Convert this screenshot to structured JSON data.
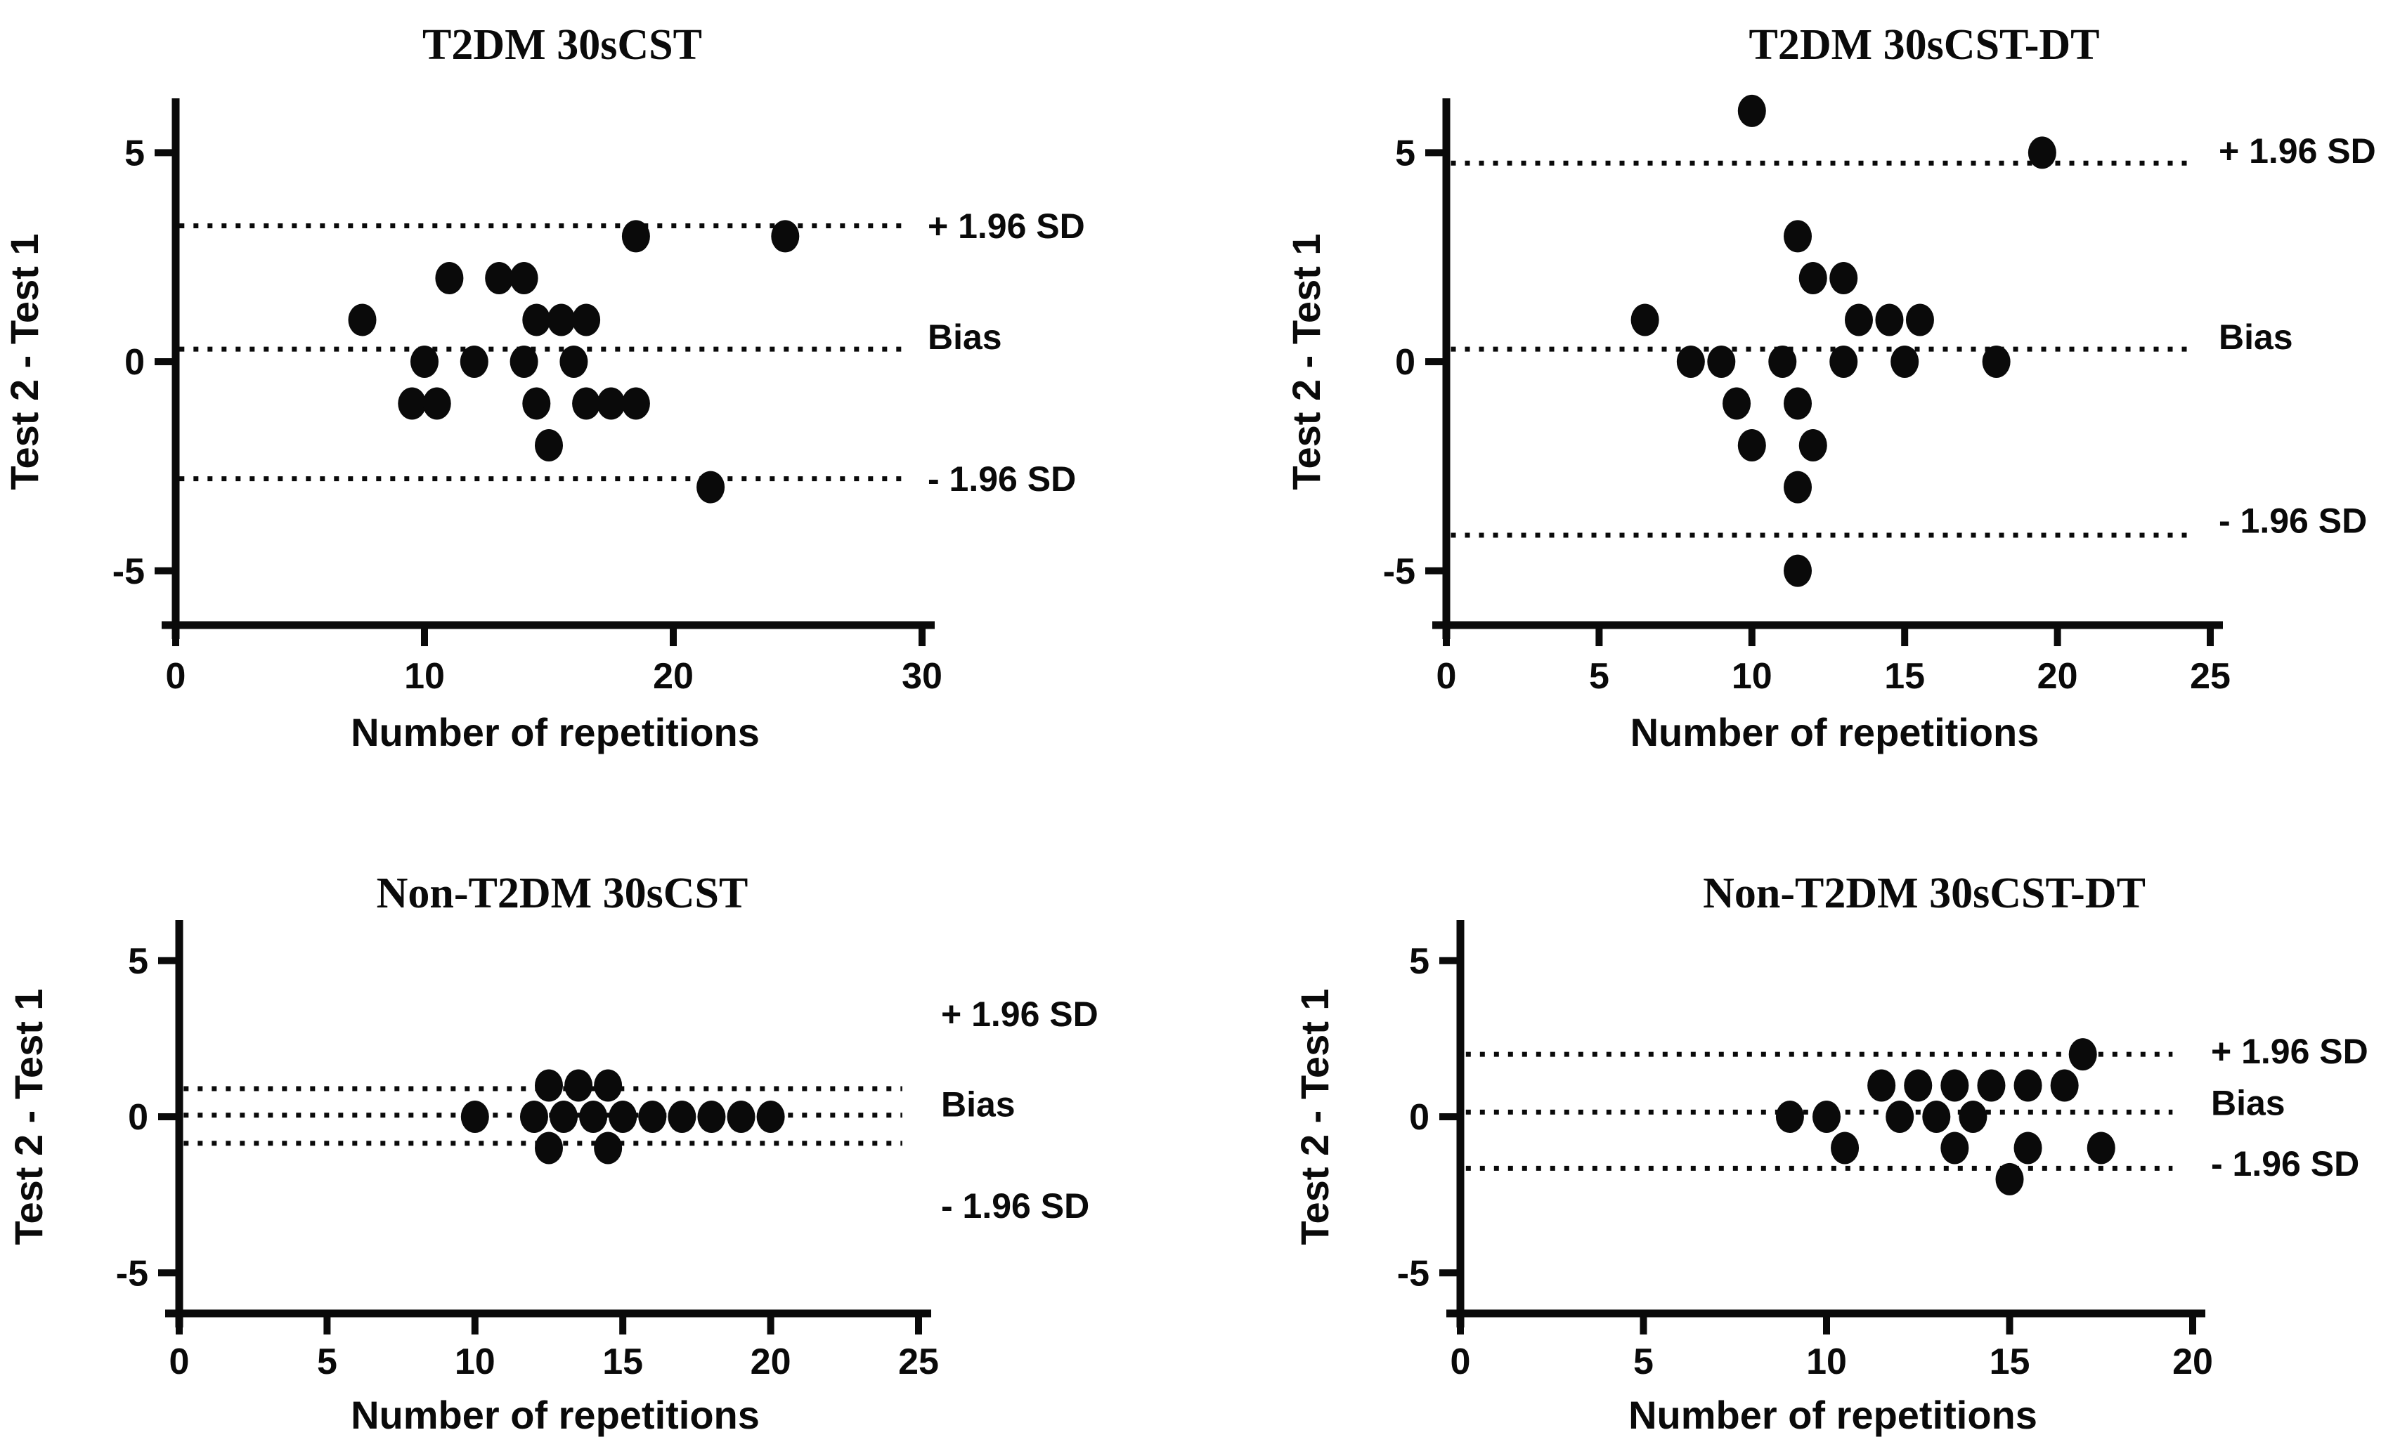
{
  "figure": {
    "background": "#ffffff",
    "ink_color": "#0a0a0a",
    "description": "Bland-Altman agreement plots, 2x2 grid"
  },
  "chart_data": [
    {
      "type": "scatter",
      "title": "T2DM 30sCST",
      "xlabel": "Number of repetitions",
      "ylabel": "Test 2 - Test 1",
      "xticks": [
        0,
        10,
        20,
        30
      ],
      "yticks": [
        -5,
        0,
        5
      ],
      "xlim": [
        0,
        30.5
      ],
      "ylim": [
        -6.3,
        6.3
      ],
      "grid": false,
      "lines": [
        {
          "name": "upper-loa",
          "y": 3.25,
          "label": "+ 1.96 SD",
          "label_y": 3.25
        },
        {
          "name": "bias",
          "y": 0.3,
          "label": "Bias",
          "label_y": 0.6
        },
        {
          "name": "lower-loa",
          "y": -2.8,
          "label": "- 1.96 SD",
          "label_y": -2.8
        }
      ],
      "points": [
        [
          7.5,
          1
        ],
        [
          11,
          2
        ],
        [
          13,
          2
        ],
        [
          14,
          2
        ],
        [
          14.5,
          1
        ],
        [
          15.5,
          1
        ],
        [
          16.5,
          1
        ],
        [
          10,
          0
        ],
        [
          12,
          0
        ],
        [
          14,
          0
        ],
        [
          16,
          0
        ],
        [
          9.5,
          -1
        ],
        [
          10.5,
          -1
        ],
        [
          14.5,
          -1
        ],
        [
          16.5,
          -1
        ],
        [
          17.5,
          -1
        ],
        [
          18.5,
          -1
        ],
        [
          15,
          -2
        ],
        [
          18.5,
          3
        ],
        [
          24.5,
          3
        ],
        [
          21.5,
          -3
        ]
      ]
    },
    {
      "type": "scatter",
      "title": "T2DM 30sCST-DT",
      "xlabel": "Number of repetitions",
      "ylabel": "Test 2 - Test 1",
      "xticks": [
        0,
        5,
        10,
        15,
        20,
        25
      ],
      "yticks": [
        -5,
        0,
        5
      ],
      "xlim": [
        0,
        25.5
      ],
      "ylim": [
        -6.3,
        6.3
      ],
      "grid": false,
      "lines": [
        {
          "name": "upper-loa",
          "y": 4.75,
          "label": "+ 1.96 SD",
          "label_y": 5.05
        },
        {
          "name": "bias",
          "y": 0.3,
          "label": "Bias",
          "label_y": 0.6
        },
        {
          "name": "lower-loa",
          "y": -4.15,
          "label": "- 1.96 SD",
          "label_y": -3.8
        }
      ],
      "points": [
        [
          10,
          6
        ],
        [
          19.5,
          5
        ],
        [
          11.5,
          3
        ],
        [
          12,
          2
        ],
        [
          13,
          2
        ],
        [
          6.5,
          1
        ],
        [
          13.5,
          1
        ],
        [
          14.5,
          1
        ],
        [
          15.5,
          1
        ],
        [
          8,
          0
        ],
        [
          9,
          0
        ],
        [
          11,
          0
        ],
        [
          13,
          0
        ],
        [
          15,
          0
        ],
        [
          18,
          0
        ],
        [
          9.5,
          -1
        ],
        [
          11.5,
          -1
        ],
        [
          10,
          -2
        ],
        [
          12,
          -2
        ],
        [
          11.5,
          -3
        ],
        [
          11.5,
          -5
        ]
      ]
    },
    {
      "type": "scatter",
      "title": "Non-T2DM 30sCST",
      "xlabel": "Number of repetitions",
      "ylabel": "Test 2 - Test 1",
      "xticks": [
        0,
        5,
        10,
        15,
        20,
        25
      ],
      "yticks": [
        -5,
        0,
        5
      ],
      "xlim": [
        0,
        25.5
      ],
      "ylim": [
        -6.3,
        6.3
      ],
      "grid": false,
      "lines": [
        {
          "name": "upper-loa",
          "y": 0.9,
          "label": "+ 1.96 SD",
          "label_y": 3.3
        },
        {
          "name": "bias",
          "y": 0.05,
          "label": "Bias",
          "label_y": 0.4
        },
        {
          "name": "lower-loa",
          "y": -0.85,
          "label": "- 1.96 SD",
          "label_y": -2.85
        }
      ],
      "points": [
        [
          12.5,
          1
        ],
        [
          13.5,
          1
        ],
        [
          14.5,
          1
        ],
        [
          10,
          0
        ],
        [
          12,
          0
        ],
        [
          13,
          0
        ],
        [
          14,
          0
        ],
        [
          15,
          0
        ],
        [
          16,
          0
        ],
        [
          17,
          0
        ],
        [
          18,
          0
        ],
        [
          19,
          0
        ],
        [
          20,
          0
        ],
        [
          12.5,
          -1
        ],
        [
          14.5,
          -1
        ]
      ]
    },
    {
      "type": "scatter",
      "title": "Non-T2DM 30sCST-DT",
      "xlabel": "Number of repetitions",
      "ylabel": "Test 2 - Test 1",
      "xticks": [
        0,
        5,
        10,
        15,
        20
      ],
      "yticks": [
        -5,
        0,
        5
      ],
      "xlim": [
        0,
        20.5
      ],
      "ylim": [
        -6.3,
        6.3
      ],
      "grid": false,
      "lines": [
        {
          "name": "upper-loa",
          "y": 2.0,
          "label": "+ 1.96 SD",
          "label_y": 2.1
        },
        {
          "name": "bias",
          "y": 0.15,
          "label": "Bias",
          "label_y": 0.45
        },
        {
          "name": "lower-loa",
          "y": -1.65,
          "label": "- 1.96 SD",
          "label_y": -1.5
        }
      ],
      "points": [
        [
          17,
          2
        ],
        [
          11.5,
          1
        ],
        [
          12.5,
          1
        ],
        [
          13.5,
          1
        ],
        [
          14.5,
          1
        ],
        [
          15.5,
          1
        ],
        [
          16.5,
          1
        ],
        [
          9,
          0
        ],
        [
          10,
          0
        ],
        [
          12,
          0
        ],
        [
          13,
          0
        ],
        [
          14,
          0
        ],
        [
          10.5,
          -1
        ],
        [
          13.5,
          -1
        ],
        [
          15.5,
          -1
        ],
        [
          17.5,
          -1
        ],
        [
          15,
          -2
        ]
      ]
    }
  ]
}
